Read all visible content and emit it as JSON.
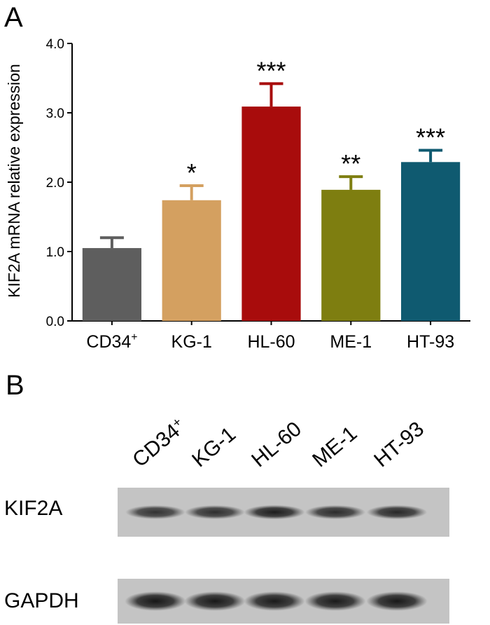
{
  "panels": {
    "a": {
      "letter": "A"
    },
    "b": {
      "letter": "B"
    }
  },
  "chart_data": {
    "type": "bar",
    "title": "",
    "xlabel": "",
    "ylabel": "KIF2A mRNA relative expression",
    "ylim": [
      0,
      4
    ],
    "yticks": [
      "0.0",
      "1.0",
      "2.0",
      "3.0",
      "4.0"
    ],
    "categories": [
      "CD34",
      "KG-1",
      "HL-60",
      "ME-1",
      "HT-93"
    ],
    "category_superscripts": [
      "+",
      "",
      "",
      "",
      ""
    ],
    "values": [
      1.05,
      1.74,
      3.09,
      1.89,
      2.29
    ],
    "errors": [
      0.15,
      0.21,
      0.33,
      0.19,
      0.17
    ],
    "significance": [
      "",
      "*",
      "***",
      "**",
      "***"
    ],
    "bar_colors": [
      "#5e5e5e",
      "#d4a060",
      "#a80c0c",
      "#7e7e10",
      "#0f5a70"
    ],
    "grid": false,
    "legend": "none"
  },
  "western_blot": {
    "lanes": [
      "CD34",
      "KG-1",
      "HL-60",
      "ME-1",
      "HT-93"
    ],
    "lane_superscripts": [
      "+",
      "",
      "",
      "",
      ""
    ],
    "rows": [
      {
        "label": "KIF2A",
        "band_intensity": [
          0.8,
          0.82,
          0.92,
          0.84,
          0.86
        ]
      },
      {
        "label": "GAPDH",
        "band_intensity": [
          0.95,
          0.94,
          0.93,
          0.93,
          0.94
        ]
      }
    ]
  }
}
